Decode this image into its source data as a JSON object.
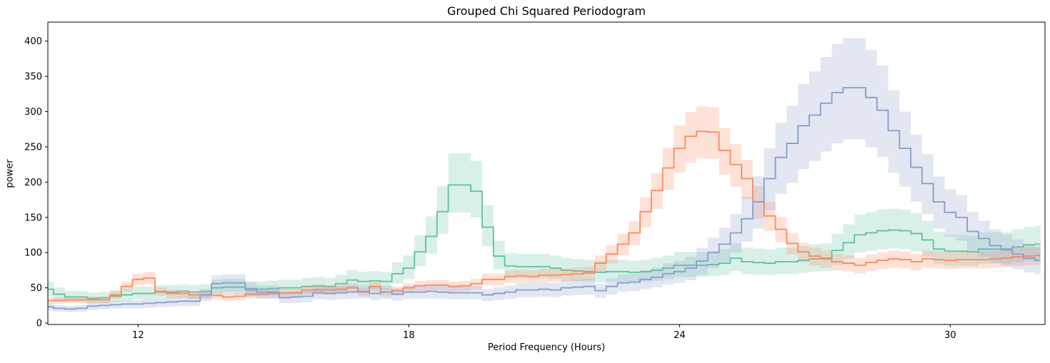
{
  "chart_data": {
    "type": "line",
    "title": "Grouped Chi Squared Periodogram",
    "xlabel": "Period Frequency (Hours)",
    "ylabel": "power",
    "xlim": [
      10,
      32.1
    ],
    "ylim": [
      -2,
      427
    ],
    "x_ticks": [
      12,
      18,
      24,
      30
    ],
    "y_ticks": [
      0,
      50,
      100,
      150,
      200,
      250,
      300,
      350,
      400
    ],
    "grid": false,
    "legend": "none",
    "line_style": "steps-mid",
    "x_start": 10,
    "x_step": 0.25,
    "series": [
      {
        "id": "series-green",
        "color": "#66c2a5",
        "band_alpha": 0.25,
        "band_lower_factor": 0.8,
        "band_upper_factor": 1.23,
        "peak": {
          "x": 19.1,
          "value": 196
        },
        "values": [
          48,
          41,
          37,
          37,
          35,
          36,
          38,
          40,
          42,
          42,
          44,
          44,
          45,
          44,
          45,
          50,
          51,
          51,
          47,
          48,
          49,
          50,
          50,
          52,
          53,
          52,
          56,
          61,
          59,
          60,
          59,
          70,
          78,
          101,
          123,
          158,
          196,
          196,
          187,
          136,
          95,
          81,
          80,
          80,
          80,
          78,
          75,
          74,
          73,
          72,
          73,
          73,
          72,
          73,
          75,
          78,
          82,
          82,
          82,
          83,
          85,
          92,
          87,
          86,
          85,
          87,
          87,
          89,
          91,
          92,
          103,
          114,
          125,
          128,
          131,
          132,
          131,
          127,
          118,
          105,
          102,
          102,
          101,
          105,
          105,
          105,
          108,
          111,
          112
        ]
      },
      {
        "id": "series-orange",
        "color": "#fc8d62",
        "band_alpha": 0.25,
        "band_lower_factor": 0.86,
        "band_upper_factor": 1.13,
        "peak": {
          "x": 24.5,
          "value": 272
        },
        "values": [
          32,
          32,
          33,
          33,
          33,
          33,
          40,
          52,
          62,
          64,
          45,
          42,
          42,
          40,
          40,
          39,
          37,
          38,
          41,
          41,
          42,
          43,
          43,
          47,
          47,
          47,
          48,
          50,
          44,
          52,
          44,
          46,
          50,
          53,
          54,
          54,
          52,
          53,
          56,
          62,
          62,
          66,
          67,
          66,
          68,
          68,
          69,
          70,
          71,
          85,
          98,
          112,
          128,
          158,
          188,
          220,
          248,
          265,
          272,
          271,
          245,
          225,
          205,
          172,
          152,
          133,
          113,
          101,
          95,
          91,
          87,
          85,
          82,
          86,
          89,
          91,
          90,
          87,
          91,
          90,
          89,
          90,
          90,
          90,
          91,
          92,
          94,
          95,
          96
        ]
      },
      {
        "id": "series-blue",
        "color": "#8da0cb",
        "band_alpha": 0.25,
        "band_lower_factor": 0.78,
        "band_upper_factor": 1.21,
        "peak": {
          "x": 27.8,
          "value": 334
        },
        "values": [
          23,
          21,
          20,
          21,
          24,
          25,
          26,
          27,
          27,
          28,
          29,
          30,
          31,
          31,
          40,
          56,
          57,
          57,
          49,
          44,
          44,
          36,
          37,
          38,
          43,
          42,
          43,
          44,
          45,
          42,
          44,
          41,
          44,
          44,
          45,
          44,
          43,
          43,
          43,
          40,
          42,
          44,
          47,
          47,
          48,
          47,
          50,
          51,
          52,
          46,
          52,
          57,
          58,
          62,
          65,
          70,
          73,
          78,
          88,
          100,
          112,
          128,
          148,
          172,
          205,
          235,
          255,
          280,
          295,
          312,
          327,
          334,
          334,
          320,
          302,
          273,
          248,
          221,
          198,
          172,
          157,
          150,
          130,
          120,
          110,
          104,
          98,
          92,
          89
        ]
      }
    ]
  }
}
